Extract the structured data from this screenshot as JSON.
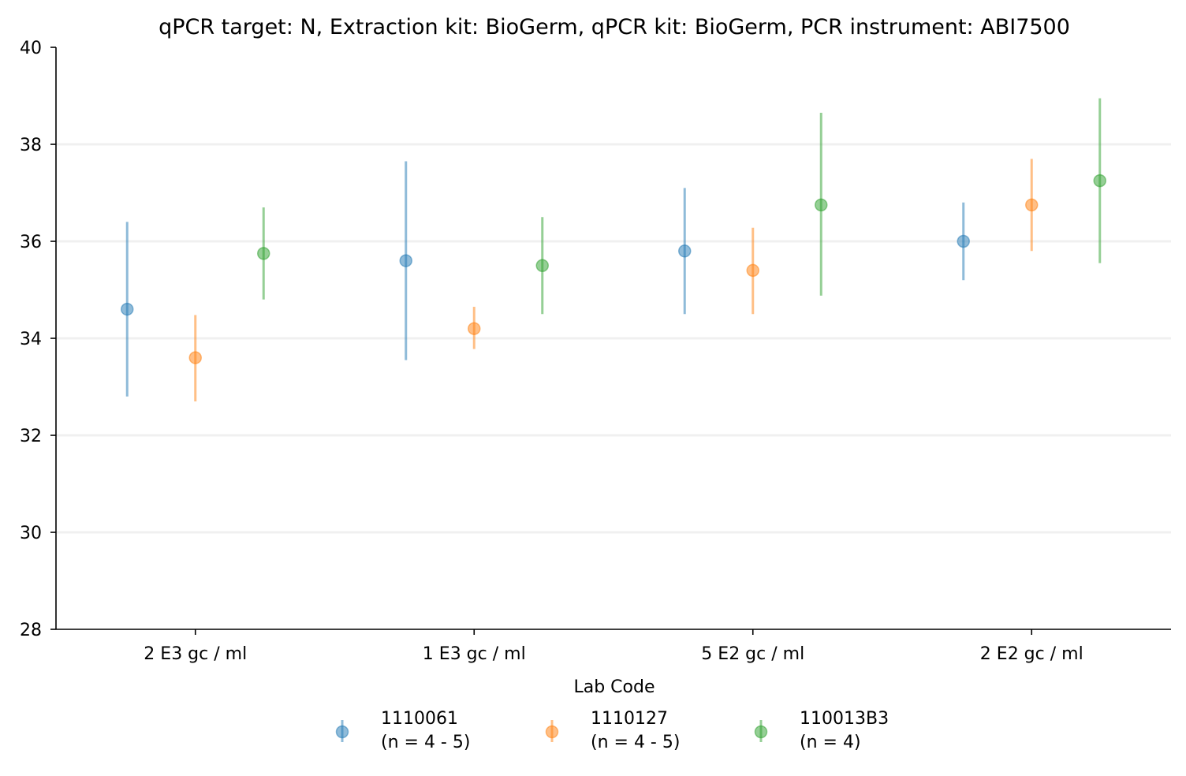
{
  "chart_data": {
    "type": "errorbar",
    "title": "qPCR target: N, Extraction kit: BioGerm, qPCR kit: BioGerm, PCR instrument: ABI7500",
    "xlabel": "",
    "ylabel": "",
    "ylim": [
      28,
      40
    ],
    "yticks": [
      "28",
      "30",
      "32",
      "34",
      "36",
      "38",
      "40"
    ],
    "categories": [
      "2 E3 gc / ml",
      "1 E3 gc / ml",
      "5 E2 gc / ml",
      "2 E2 gc / ml"
    ],
    "grid": "horizontal",
    "legend": {
      "title": "Lab Code",
      "placement": "bottom-center"
    },
    "series": [
      {
        "name": "1110061",
        "note": "(n = 4 - 5)",
        "color": "#1f77b4",
        "values": [
          34.6,
          35.6,
          35.8,
          36.0
        ],
        "lower": [
          32.8,
          33.55,
          34.5,
          35.2
        ],
        "upper": [
          36.4,
          37.65,
          37.1,
          36.8
        ]
      },
      {
        "name": "1110127",
        "note": "(n = 4 - 5)",
        "color": "#ff7f0e",
        "values": [
          33.6,
          34.2,
          35.4,
          36.75
        ],
        "lower": [
          32.7,
          33.78,
          34.5,
          35.8
        ],
        "upper": [
          34.48,
          34.65,
          36.28,
          37.7
        ]
      },
      {
        "name": "110013B3",
        "note": "(n = 4)",
        "color": "#2ca02c",
        "values": [
          35.75,
          35.5,
          36.75,
          37.25
        ],
        "lower": [
          34.8,
          34.5,
          34.88,
          35.55
        ],
        "upper": [
          36.7,
          36.5,
          38.65,
          38.95
        ]
      }
    ]
  }
}
